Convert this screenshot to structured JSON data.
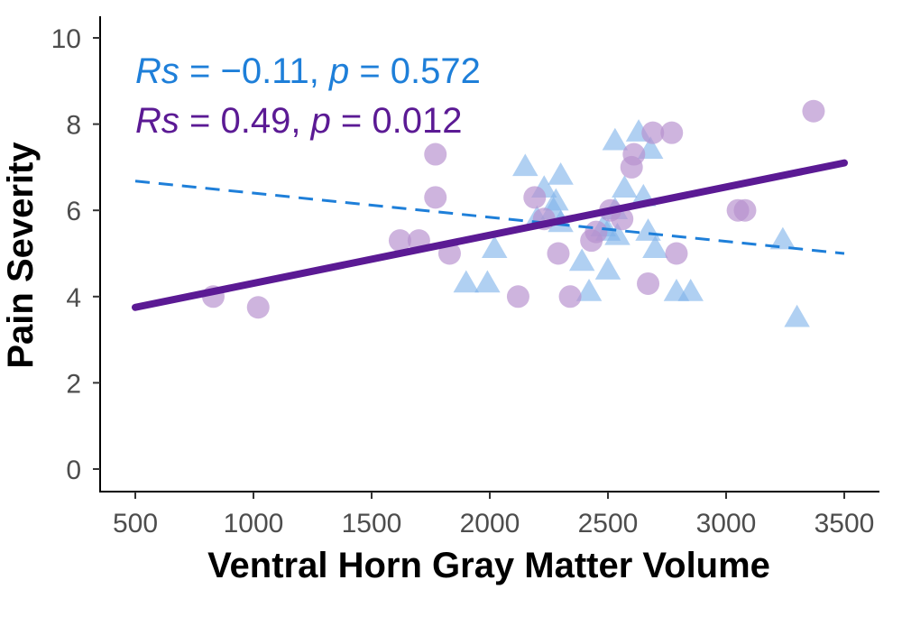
{
  "chart_data": {
    "type": "scatter",
    "xlabel": "Ventral Horn Gray Matter Volume",
    "ylabel": "Pain Severity",
    "xlim": [
      500,
      3500
    ],
    "ylim": [
      0,
      10
    ],
    "xticks": [
      500,
      1000,
      1500,
      2000,
      2500,
      3000,
      3500
    ],
    "yticks": [
      0,
      2,
      4,
      6,
      8,
      10
    ],
    "grid": false,
    "annotations": [
      {
        "r_symbol": "R",
        "s_symbol": "s",
        "rs_value": " = −0.11, ",
        "p_symbol": "p",
        "p_value": " = 0.572",
        "color": "#1E7FD9"
      },
      {
        "r_symbol": "R",
        "s_symbol": "s",
        "rs_value": " = 0.49, ",
        "p_symbol": "p",
        "p_value": " = 0.012",
        "color": "#5B1A94"
      }
    ],
    "series": [
      {
        "marker": "triangle",
        "color": "#7FB3EA",
        "line_style": "dashed",
        "line_color": "#1E7FD9",
        "fit": {
          "x": [
            500,
            3500
          ],
          "y": [
            6.68,
            5.0
          ]
        },
        "points": [
          {
            "x": 2150,
            "y": 7.0
          },
          {
            "x": 2300,
            "y": 6.8
          },
          {
            "x": 2230,
            "y": 6.5
          },
          {
            "x": 2280,
            "y": 6.2
          },
          {
            "x": 2200,
            "y": 5.8
          },
          {
            "x": 2300,
            "y": 5.7
          },
          {
            "x": 2270,
            "y": 6.0
          },
          {
            "x": 1900,
            "y": 4.3
          },
          {
            "x": 1990,
            "y": 4.3
          },
          {
            "x": 2020,
            "y": 5.1
          },
          {
            "x": 2390,
            "y": 4.8
          },
          {
            "x": 2420,
            "y": 4.1
          },
          {
            "x": 2500,
            "y": 4.6
          },
          {
            "x": 2500,
            "y": 5.5
          },
          {
            "x": 2530,
            "y": 6.0
          },
          {
            "x": 2530,
            "y": 7.6
          },
          {
            "x": 2570,
            "y": 6.5
          },
          {
            "x": 2630,
            "y": 7.8
          },
          {
            "x": 2680,
            "y": 7.4
          },
          {
            "x": 2650,
            "y": 6.3
          },
          {
            "x": 2670,
            "y": 5.5
          },
          {
            "x": 2700,
            "y": 5.1
          },
          {
            "x": 2790,
            "y": 4.1
          },
          {
            "x": 2850,
            "y": 4.1
          },
          {
            "x": 2540,
            "y": 5.4
          },
          {
            "x": 3240,
            "y": 5.3
          },
          {
            "x": 3300,
            "y": 3.5
          },
          {
            "x": 2480,
            "y": 5.6
          }
        ]
      },
      {
        "marker": "circle",
        "color": "#B791CE",
        "line_style": "solid",
        "line_color": "#5B1A94",
        "fit": {
          "x": [
            500,
            3500
          ],
          "y": [
            3.75,
            7.1
          ]
        },
        "points": [
          {
            "x": 830,
            "y": 4.0
          },
          {
            "x": 1020,
            "y": 3.75
          },
          {
            "x": 1620,
            "y": 5.3
          },
          {
            "x": 1700,
            "y": 5.3
          },
          {
            "x": 1770,
            "y": 7.3
          },
          {
            "x": 1770,
            "y": 6.3
          },
          {
            "x": 1830,
            "y": 5.0
          },
          {
            "x": 2120,
            "y": 4.0
          },
          {
            "x": 2190,
            "y": 6.3
          },
          {
            "x": 2230,
            "y": 5.8
          },
          {
            "x": 2290,
            "y": 5.0
          },
          {
            "x": 2340,
            "y": 4.0
          },
          {
            "x": 2430,
            "y": 5.3
          },
          {
            "x": 2450,
            "y": 5.5
          },
          {
            "x": 2510,
            "y": 6.0
          },
          {
            "x": 2560,
            "y": 5.8
          },
          {
            "x": 2600,
            "y": 7.0
          },
          {
            "x": 2610,
            "y": 7.3
          },
          {
            "x": 2670,
            "y": 4.3
          },
          {
            "x": 2690,
            "y": 7.8
          },
          {
            "x": 2770,
            "y": 7.8
          },
          {
            "x": 2790,
            "y": 5.0
          },
          {
            "x": 3050,
            "y": 6.0
          },
          {
            "x": 3080,
            "y": 6.0
          },
          {
            "x": 3370,
            "y": 8.3
          }
        ]
      }
    ]
  }
}
